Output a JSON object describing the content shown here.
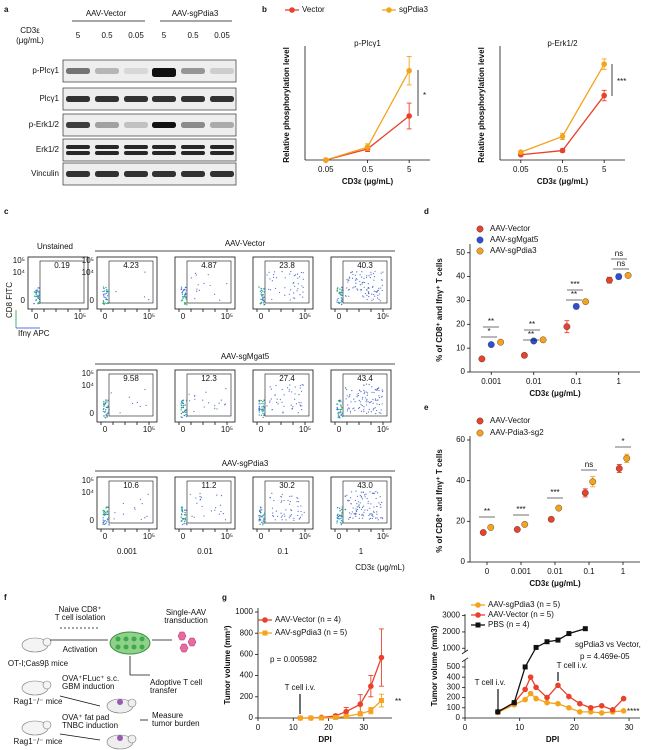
{
  "panel_letters": [
    "a",
    "b",
    "c",
    "d",
    "e",
    "f",
    "g",
    "h"
  ],
  "blot": {
    "groups": [
      "AAV-Vector",
      "AAV-sgPdia3"
    ],
    "cd3_label": [
      "CD3ε",
      "(μg/mL)"
    ],
    "lanes": [
      "5",
      "0.5",
      "0.05",
      "5",
      "0.5",
      "0.05"
    ],
    "rows": [
      "p-Plcγ1",
      "Plcγ1",
      "p-Erk1/2",
      "Erk1/2",
      "Vinculin"
    ]
  },
  "flow": {
    "unstained": {
      "label": "Unstained",
      "gate": "0.19"
    },
    "rows": [
      {
        "title": "AAV-Vector",
        "gates": [
          "4.23",
          "4.87",
          "23.8",
          "40.3"
        ]
      },
      {
        "title": "AAV-sgMgat5",
        "gates": [
          "9.58",
          "12.3",
          "27.4",
          "43.4"
        ]
      },
      {
        "title": "AAV-sgPdia3",
        "gates": [
          "10.6",
          "11.2",
          "30.2",
          "43.0"
        ]
      }
    ],
    "columns": [
      "0.001",
      "0.01",
      "0.1",
      "1"
    ],
    "xlabel": "CD3ε (μg/mL)",
    "y_axis": "CD8 FITC",
    "x_axis": "Ifnγ APC",
    "yticks": [
      "10⁵",
      "10⁴",
      "0"
    ],
    "xticks": [
      "0",
      "10⁵"
    ]
  },
  "schematic": {
    "labels": [
      "OT-I;Cas9β mice",
      "Naive CD8⁺",
      "T cell isolation",
      "Activation",
      "Single-AAV",
      "transduction",
      "Adoptive T cell",
      "transfer",
      "Rag1⁻/⁻ mice",
      "OVA⁺FLuc⁺ s.c.",
      "GBM induction",
      "Rag1⁻/⁻ mice",
      "OVA⁺ fat pad",
      "TNBC induction",
      "Measure",
      "tumor burden"
    ]
  },
  "chart_data": [
    {
      "type": "line",
      "title": "p-Plcγ1",
      "ylabel": "Relative phosphorylation level",
      "xlabel": "CD3ε (μg/mL)",
      "categories": [
        "0.05",
        "0.5",
        "5"
      ],
      "ylim": [
        0,
        1.7
      ],
      "series": [
        {
          "name": "Vector",
          "color": "#e8412c",
          "marker": "circle",
          "values": [
            0,
            0.17,
            0.68
          ],
          "errors": [
            0,
            0.04,
            0.2
          ]
        },
        {
          "name": "sgPdia3",
          "color": "#f5a31c",
          "marker": "circle",
          "values": [
            0,
            0.2,
            1.38
          ],
          "errors": [
            0,
            0.05,
            0.22
          ]
        }
      ],
      "annotations": [
        "*"
      ]
    },
    {
      "type": "line",
      "title": "p-Erk1/2",
      "ylabel": "Relative phosphorylation level",
      "xlabel": "CD3ε (μg/mL)",
      "categories": [
        "0.05",
        "0.5",
        "5"
      ],
      "ylim": [
        0,
        2.1
      ],
      "series": [
        {
          "color": "#e8412c",
          "marker": "circle",
          "values": [
            0.1,
            0.18,
            1.23
          ],
          "errors": [
            0.02,
            0.03,
            0.1
          ]
        },
        {
          "color": "#f5a31c",
          "marker": "circle",
          "values": [
            0.15,
            0.45,
            1.83
          ],
          "errors": [
            0.02,
            0.06,
            0.1
          ]
        }
      ],
      "annotations": [
        "***"
      ]
    },
    {
      "type": "dot",
      "ylabel": "% of CD8⁺ and Ifnγ⁺ T cells",
      "xlabel": "CD3ε (μg/mL)",
      "categories": [
        "0.001",
        "0.01",
        "0.1",
        "1"
      ],
      "ylim": [
        0,
        52
      ],
      "yticks": [
        0,
        10,
        20,
        30,
        40,
        50
      ],
      "series": [
        {
          "name": "AAV-Vector",
          "color": "#e8412c",
          "values": [
            5.5,
            7,
            19,
            38.5
          ],
          "errors": [
            0.4,
            0.8,
            2.5,
            1.2
          ]
        },
        {
          "name": "AAV-sgMgat5",
          "color": "#2c4fd6",
          "values": [
            11.5,
            13,
            27.5,
            40
          ],
          "errors": [
            0.6,
            0.7,
            1,
            1
          ]
        },
        {
          "name": "AAV-sgPdia3",
          "color": "#f5a31c",
          "values": [
            12.5,
            13.5,
            29.5,
            40.5
          ],
          "errors": [
            0.4,
            0.5,
            0.8,
            0.6
          ]
        }
      ],
      "annotations": [
        "**",
        "*",
        "**",
        "**",
        "***",
        "**",
        "ns",
        "ns"
      ]
    },
    {
      "type": "dot",
      "ylabel": "% of CD8⁺ and Ifnγ⁺ T cells",
      "xlabel": "CD3ε (μg/mL)",
      "categories": [
        "0",
        "0.001",
        "0.01",
        "0.1",
        "1"
      ],
      "ylim": [
        0,
        60
      ],
      "yticks": [
        0,
        20,
        40,
        60
      ],
      "series": [
        {
          "name": "AAV-Vector",
          "color": "#e8412c",
          "values": [
            14.5,
            16,
            21,
            34,
            46
          ],
          "errors": [
            0.5,
            0.5,
            0.8,
            2,
            2
          ]
        },
        {
          "name": "AAV-Pdia3-sg2",
          "color": "#f5a31c",
          "values": [
            17,
            18.5,
            26.5,
            39.5,
            51
          ],
          "errors": [
            0.5,
            0.5,
            0.6,
            2.5,
            2
          ]
        }
      ],
      "annotations": [
        "**",
        "***",
        "***",
        "ns",
        "*"
      ]
    },
    {
      "type": "line",
      "ylabel": "Tumor volume (mm³)",
      "xlabel": "DPI",
      "x": [
        12,
        15,
        18,
        22,
        25,
        29,
        32,
        35
      ],
      "xlim": [
        0,
        38
      ],
      "xticks": [
        0,
        10,
        20,
        30
      ],
      "ylim": [
        0,
        1000
      ],
      "yticks": [
        0,
        200,
        400,
        600,
        800,
        1000
      ],
      "series": [
        {
          "name": "AAV-Vector (n = 4)",
          "color": "#e8412c",
          "marker": "circle",
          "values": [
            0,
            0,
            5,
            20,
            60,
            130,
            300,
            570
          ],
          "errors": [
            0,
            0,
            5,
            15,
            40,
            90,
            100,
            270
          ]
        },
        {
          "name": "AAV-sgPdia3 (n = 5)",
          "color": "#f5a31c",
          "marker": "square",
          "values": [
            0,
            0,
            0,
            5,
            15,
            40,
            70,
            165
          ],
          "errors": [
            0,
            0,
            0,
            5,
            10,
            20,
            30,
            60
          ]
        }
      ],
      "annotations": [
        "p = 0.005982",
        "T cell i.v.",
        "**"
      ]
    },
    {
      "type": "line",
      "ylabel": "Tumor volume (mm3)",
      "xlabel": "DPI",
      "xlim": [
        0,
        32
      ],
      "xticks": [
        0,
        10,
        20,
        30
      ],
      "ylim": [
        0,
        3100
      ],
      "ybreak": [
        550,
        900
      ],
      "yticks": [
        0,
        100,
        200,
        300,
        400,
        500,
        1000,
        2000,
        3000
      ],
      "series": [
        {
          "name": "AAV-sgPdia3 (n = 5)",
          "color": "#f5a31c",
          "marker": "circle",
          "x": [
            6,
            9,
            11,
            12,
            13,
            15,
            17,
            19,
            21,
            23,
            25,
            27,
            29
          ],
          "values": [
            55,
            130,
            180,
            240,
            190,
            150,
            140,
            100,
            60,
            60,
            50,
            60,
            70
          ]
        },
        {
          "name": "AAV-Vector (n = 5)",
          "color": "#e8412c",
          "marker": "circle",
          "x": [
            6,
            9,
            11,
            12,
            13,
            15,
            17,
            19,
            21,
            23,
            25,
            27,
            29
          ],
          "values": [
            60,
            150,
            280,
            400,
            300,
            200,
            320,
            210,
            140,
            100,
            120,
            80,
            190
          ]
        },
        {
          "name": "PBS (n = 4)",
          "color": "#111111",
          "marker": "square",
          "x": [
            6,
            9,
            11,
            13,
            15,
            17,
            19,
            22
          ],
          "values": [
            60,
            150,
            500,
            1050,
            1400,
            1500,
            1900,
            2200
          ]
        }
      ],
      "annotations": [
        "sgPdia3 vs Vector,",
        "p = 4.469e-05",
        "T cell i.v.",
        "T cell i.v.",
        "****"
      ]
    }
  ]
}
